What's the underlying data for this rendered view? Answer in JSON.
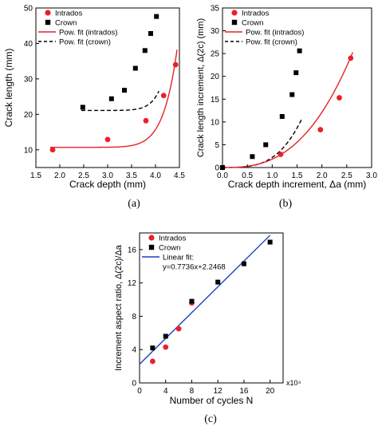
{
  "chart_data": [
    {
      "type": "scatter",
      "panel_label": "(a)",
      "xlabel": "Crack depth (mm)",
      "ylabel": "Crack length (mm)",
      "xlim": [
        1.5,
        4.5
      ],
      "ylim": [
        5,
        50
      ],
      "xticks": [
        "1.5",
        "2.0",
        "2.5",
        "3.0",
        "3.5",
        "4.0",
        "4.5"
      ],
      "yticks": [
        "10",
        "20",
        "30",
        "40",
        "50"
      ],
      "legend_position": "top-left",
      "series": [
        {
          "name": "Intrados",
          "marker": "circle",
          "color": "#e8212a",
          "x": [
            1.85,
            3.0,
            3.8,
            4.17,
            4.42
          ],
          "y": [
            10.0,
            12.9,
            18.2,
            25.3,
            34.0
          ]
        },
        {
          "name": "Crown",
          "marker": "square",
          "color": "#000000",
          "x": [
            2.48,
            3.08,
            3.35,
            3.58,
            3.78,
            3.9,
            4.02
          ],
          "y": [
            22.0,
            24.4,
            26.8,
            33.0,
            38.0,
            42.8,
            47.6
          ]
        }
      ],
      "fits": [
        {
          "name": "Pow. fit (intrados)",
          "style": "solid",
          "color": "#e8212a",
          "x0": 1.8,
          "x1": 4.45,
          "base": 10.7,
          "coef": 0.42,
          "exp": 10.3
        },
        {
          "name": "Pow. fit (crown)",
          "style": "dashed",
          "color": "#000000",
          "x0": 2.45,
          "x1": 4.07,
          "base": 21.1,
          "coef": 1.55,
          "exp": 13.5
        }
      ]
    },
    {
      "type": "scatter",
      "panel_label": "(b)",
      "xlabel": "Crack depth increment, Δa (mm)",
      "ylabel": "Crack length increment, Δ(2c) (mm)",
      "xlim": [
        0.0,
        3.0
      ],
      "ylim": [
        0,
        35
      ],
      "xticks": [
        "0.0",
        "0.5",
        "1.0",
        "1.5",
        "2.0",
        "2.5",
        "3.0"
      ],
      "yticks": [
        "0",
        "5",
        "10",
        "15",
        "20",
        "25",
        "30",
        "35"
      ],
      "legend_position": "top-left",
      "series": [
        {
          "name": "Intrados",
          "marker": "circle",
          "color": "#e8212a",
          "x": [
            0.0,
            1.17,
            1.97,
            2.35,
            2.58
          ],
          "y": [
            0.0,
            2.9,
            8.3,
            15.3,
            24.0
          ]
        },
        {
          "name": "Crown",
          "marker": "square",
          "color": "#000000",
          "x": [
            0.0,
            0.6,
            0.87,
            1.2,
            1.4,
            1.48,
            1.55
          ],
          "y": [
            0.0,
            2.4,
            5.0,
            11.2,
            16.0,
            20.8,
            25.6
          ]
        }
      ],
      "fits": [
        {
          "name": "Pow. fit (intrados)",
          "style": "solid",
          "color": "#e8212a",
          "x0": 0.0,
          "x1": 2.62,
          "base": 0,
          "coef": 1.84,
          "exp": 2.72
        },
        {
          "name": "Pow. fit (crown)",
          "style": "dashed",
          "color": "#000000",
          "x0": 0.0,
          "x1": 1.6,
          "base": 0,
          "coef": 5.2,
          "exp": 3.37
        }
      ]
    },
    {
      "type": "scatter",
      "panel_label": "(c)",
      "xlabel": "Number of cycles N",
      "ylabel": "Increment aspect ratio, Δ(2c)/Δa",
      "x_multiplier": "x10⁴",
      "xlim": [
        0,
        22
      ],
      "ylim": [
        0,
        18
      ],
      "xticks": [
        "0",
        "4",
        "8",
        "12",
        "16",
        "20"
      ],
      "yticks": [
        "0",
        "4",
        "8",
        "12",
        "16"
      ],
      "legend_position": "top-left",
      "series": [
        {
          "name": "Intrados",
          "marker": "circle",
          "color": "#e8212a",
          "x": [
            2,
            4,
            6,
            8
          ],
          "y": [
            2.6,
            4.3,
            6.5,
            9.6
          ]
        },
        {
          "name": "Crown",
          "marker": "square",
          "color": "#000000",
          "x": [
            2,
            4,
            8,
            12,
            16,
            20
          ],
          "y": [
            4.2,
            5.6,
            9.8,
            12.1,
            14.3,
            16.9
          ]
        }
      ],
      "linear_fit": {
        "name": "Linear fit:",
        "equation": "y=0.7736x+2.2468",
        "slope": 0.7736,
        "intercept": 2.2468,
        "x0": 0,
        "x1": 20,
        "color": "#1f3fbf"
      }
    }
  ]
}
